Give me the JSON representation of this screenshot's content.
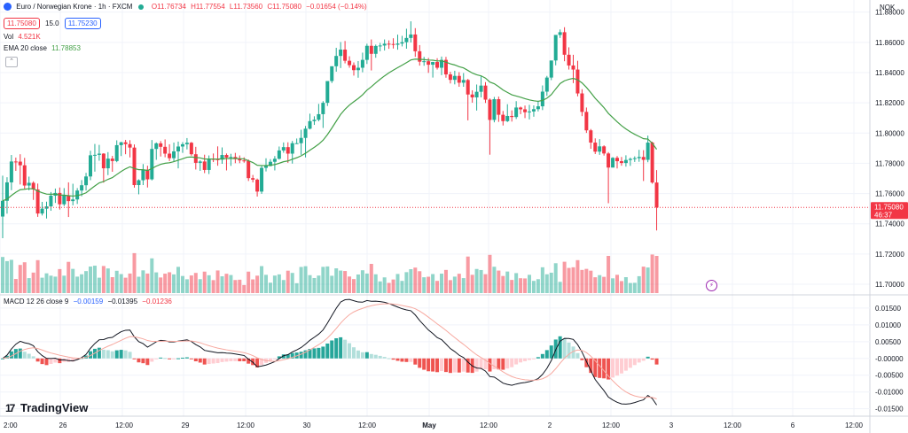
{
  "header": {
    "symbol_name": "Euro / Norwegian Krone · 1h · FXCM",
    "ohlc": {
      "o": "O11.76734",
      "h": "H11.77554",
      "l": "L11.73560",
      "c": "C11.75080",
      "chg": "−0.01654 (−0.14%)"
    },
    "sell_price": "11.75080",
    "spread": "15.0",
    "buy_price": "11.75230",
    "volume_label": "Vol",
    "volume_value": "4.521K",
    "ema_label": "EMA 20 close",
    "ema_value": "11.78853",
    "collapse_icon": "chevron-up-icon"
  },
  "macd_legend": {
    "label": "MACD 12 26 close 9",
    "v1": "−0.00159",
    "v2": "−0.01395",
    "v3": "−0.01236"
  },
  "currency": "NOK",
  "brand": "TradingView",
  "colors": {
    "up": "#22ab94",
    "down": "#f23645",
    "ema": "#43a047",
    "macd": "#131722",
    "signal": "#f7a9a0"
  },
  "chart_data": {
    "type": "candlestick",
    "x_tick_labels": [
      "2:00",
      "26",
      "12:00",
      "29",
      "12:00",
      "30",
      "12:00",
      "May",
      "12:00",
      "2",
      "12:00",
      "3",
      "12:00",
      "6",
      "12:00"
    ],
    "price_axis": {
      "ticks": [
        "11.88000",
        "11.86000",
        "11.84000",
        "11.82000",
        "11.80000",
        "11.78000",
        "11.76000",
        "11.74000",
        "11.72000",
        "11.70000"
      ],
      "ylim": [
        11.693,
        11.888
      ]
    },
    "last_price": {
      "value": 11.7508,
      "label": "11.75080",
      "countdown": "46:37"
    },
    "candles": [
      [
        11.7448,
        11.7718,
        11.7305,
        11.7552
      ],
      [
        11.7552,
        11.7708,
        11.7467,
        11.7674
      ],
      [
        11.7674,
        11.7855,
        11.7622,
        11.7812
      ],
      [
        11.7812,
        11.7838,
        11.775,
        11.7811
      ],
      [
        11.7811,
        11.786,
        11.766,
        11.7787
      ],
      [
        11.7787,
        11.7836,
        11.7631,
        11.7653
      ],
      [
        11.7653,
        11.7712,
        11.7621,
        11.7671
      ],
      [
        11.7671,
        11.7681,
        11.7558,
        11.7627
      ],
      [
        11.7627,
        11.7666,
        11.7446,
        11.7468
      ],
      [
        11.7468,
        11.7545,
        11.7455,
        11.75
      ],
      [
        11.75,
        11.7546,
        11.7435,
        11.7515
      ],
      [
        11.7515,
        11.761,
        11.7486,
        11.7586
      ],
      [
        11.7586,
        11.7633,
        11.7538,
        11.7604
      ],
      [
        11.7604,
        11.764,
        11.7494,
        11.7529
      ],
      [
        11.7529,
        11.7636,
        11.7517,
        11.7586
      ],
      [
        11.7586,
        11.7674,
        11.7445,
        11.755
      ],
      [
        11.755,
        11.7665,
        11.7522,
        11.7561
      ],
      [
        11.7561,
        11.7636,
        11.7531,
        11.762
      ],
      [
        11.762,
        11.7689,
        11.7582,
        11.7655
      ],
      [
        11.7655,
        11.7737,
        11.762,
        11.7713
      ],
      [
        11.7713,
        11.7883,
        11.7688,
        11.7853
      ],
      [
        11.7853,
        11.7928,
        11.7745,
        11.7856
      ],
      [
        11.7856,
        11.7922,
        11.7817,
        11.7864
      ],
      [
        11.7864,
        11.7867,
        11.7672,
        11.7767
      ],
      [
        11.7767,
        11.7874,
        11.7722,
        11.7831
      ],
      [
        11.7831,
        11.7849,
        11.7744,
        11.7815
      ],
      [
        11.7815,
        11.7952,
        11.7807,
        11.792
      ],
      [
        11.792,
        11.7942,
        11.7848,
        11.7939
      ],
      [
        11.7939,
        11.7955,
        11.786,
        11.7927
      ],
      [
        11.7927,
        11.7953,
        11.7839,
        11.7904
      ],
      [
        11.7904,
        11.7925,
        11.7639,
        11.7656
      ],
      [
        11.7656,
        11.7694,
        11.7595,
        11.7688
      ],
      [
        11.7688,
        11.7795,
        11.7656,
        11.7758
      ],
      [
        11.7758,
        11.7784,
        11.764,
        11.7694
      ],
      [
        11.7694,
        11.7954,
        11.7687,
        11.7895
      ],
      [
        11.7895,
        11.7938,
        11.7823,
        11.7932
      ],
      [
        11.7932,
        11.7947,
        11.7845,
        11.7909
      ],
      [
        11.7909,
        11.7958,
        11.784,
        11.7864
      ],
      [
        11.7864,
        11.7926,
        11.7815,
        11.7834
      ],
      [
        11.7834,
        11.7937,
        11.7811,
        11.7879
      ],
      [
        11.7879,
        11.7944,
        11.7767,
        11.7911
      ],
      [
        11.7911,
        11.794,
        11.7869,
        11.7926
      ],
      [
        11.7926,
        11.7967,
        11.7892,
        11.7936
      ],
      [
        11.7936,
        11.7941,
        11.785,
        11.786
      ],
      [
        11.786,
        11.7909,
        11.7759,
        11.7803
      ],
      [
        11.7803,
        11.7821,
        11.775,
        11.7812
      ],
      [
        11.7812,
        11.7857,
        11.7735,
        11.7756
      ],
      [
        11.7756,
        11.7852,
        11.7729,
        11.7829
      ],
      [
        11.7829,
        11.7865,
        11.7808,
        11.7827
      ],
      [
        11.7827,
        11.7912,
        11.7784,
        11.7824
      ],
      [
        11.7824,
        11.7905,
        11.7797,
        11.7855
      ],
      [
        11.7855,
        11.7865,
        11.7753,
        11.7838
      ],
      [
        11.7838,
        11.7863,
        11.7783,
        11.7842
      ],
      [
        11.7842,
        11.7869,
        11.7801,
        11.7828
      ],
      [
        11.7828,
        11.7852,
        11.7801,
        11.7819
      ],
      [
        11.7819,
        11.784,
        11.7804,
        11.7817
      ],
      [
        11.7817,
        11.7825,
        11.7683,
        11.7702
      ],
      [
        11.7702,
        11.7723,
        11.7674,
        11.7692
      ],
      [
        11.7692,
        11.7699,
        11.758,
        11.7613
      ],
      [
        11.7613,
        11.7787,
        11.7598,
        11.777
      ],
      [
        11.777,
        11.7833,
        11.7746,
        11.7782
      ],
      [
        11.7782,
        11.7828,
        11.778,
        11.781
      ],
      [
        11.781,
        11.7848,
        11.7753,
        11.783
      ],
      [
        11.783,
        11.7911,
        11.7825,
        11.7885
      ],
      [
        11.7885,
        11.7938,
        11.787,
        11.7907
      ],
      [
        11.7907,
        11.7939,
        11.7803,
        11.7864
      ],
      [
        11.7864,
        11.7948,
        11.7798,
        11.7933
      ],
      [
        11.7933,
        11.7964,
        11.7931,
        11.7933
      ],
      [
        11.7933,
        11.8022,
        11.7856,
        11.7968
      ],
      [
        11.7968,
        11.8047,
        11.7839,
        11.8029
      ],
      [
        11.8029,
        11.8128,
        11.8024,
        11.8079
      ],
      [
        11.8079,
        11.8111,
        11.8054,
        11.8088
      ],
      [
        11.8088,
        11.8193,
        11.8078,
        11.8125
      ],
      [
        11.8125,
        11.8211,
        11.8034,
        11.82
      ],
      [
        11.82,
        11.834,
        11.8179,
        11.8344
      ],
      [
        11.8344,
        11.8439,
        11.8331,
        11.8442
      ],
      [
        11.8442,
        11.8564,
        11.8406,
        11.851
      ],
      [
        11.851,
        11.8602,
        11.843,
        11.8552
      ],
      [
        11.8552,
        11.8609,
        11.8461,
        11.8478
      ],
      [
        11.8478,
        11.8508,
        11.8432,
        11.8449
      ],
      [
        11.8449,
        11.8467,
        11.838,
        11.8416
      ],
      [
        11.8416,
        11.8476,
        11.8366,
        11.8432
      ],
      [
        11.8432,
        11.8532,
        11.8402,
        11.8484
      ],
      [
        11.8484,
        11.8591,
        11.8457,
        11.8577
      ],
      [
        11.8577,
        11.8619,
        11.8414,
        11.8524
      ],
      [
        11.8524,
        11.8585,
        11.8498,
        11.8576
      ],
      [
        11.8576,
        11.8596,
        11.8541,
        11.8579
      ],
      [
        11.8579,
        11.8619,
        11.8546,
        11.8591
      ],
      [
        11.8591,
        11.8613,
        11.8557,
        11.8589
      ],
      [
        11.8589,
        11.8627,
        11.8559,
        11.8584
      ],
      [
        11.8584,
        11.8651,
        11.8551,
        11.8592
      ],
      [
        11.8592,
        11.8643,
        11.8573,
        11.8601
      ],
      [
        11.8601,
        11.869,
        11.8558,
        11.8629
      ],
      [
        11.8629,
        11.8739,
        11.8599,
        11.8652
      ],
      [
        11.8652,
        11.8694,
        11.8504,
        11.8541
      ],
      [
        11.8541,
        11.8582,
        11.8446,
        11.8472
      ],
      [
        11.8472,
        11.8504,
        11.8445,
        11.8475
      ],
      [
        11.8475,
        11.8497,
        11.8398,
        11.8452
      ],
      [
        11.8452,
        11.8471,
        11.8367,
        11.847
      ],
      [
        11.847,
        11.8495,
        11.842,
        11.8432
      ],
      [
        11.8432,
        11.8506,
        11.8383,
        11.8484
      ],
      [
        11.8484,
        11.8504,
        11.8366,
        11.8388
      ],
      [
        11.8388,
        11.8405,
        11.8328,
        11.8352
      ],
      [
        11.8352,
        11.8412,
        11.8322,
        11.8378
      ],
      [
        11.8378,
        11.8403,
        11.8306,
        11.8333
      ],
      [
        11.8333,
        11.8397,
        11.8306,
        11.8351
      ],
      [
        11.8351,
        11.8358,
        11.8084,
        11.8255
      ],
      [
        11.8255,
        11.8283,
        11.8201,
        11.8236
      ],
      [
        11.8236,
        11.8321,
        11.8149,
        11.8273
      ],
      [
        11.8273,
        11.8378,
        11.8236,
        11.8314
      ],
      [
        11.8314,
        11.8337,
        11.8199,
        11.8221
      ],
      [
        11.8221,
        11.8229,
        11.7857,
        11.8087
      ],
      [
        11.8087,
        11.8239,
        11.8071,
        11.8224
      ],
      [
        11.8224,
        11.8241,
        11.8074,
        11.8121
      ],
      [
        11.8121,
        11.8146,
        11.805,
        11.8079
      ],
      [
        11.8079,
        11.8191,
        11.8073,
        11.8113
      ],
      [
        11.8113,
        11.815,
        11.8076,
        11.8106
      ],
      [
        11.8106,
        11.8211,
        11.8093,
        11.8169
      ],
      [
        11.8169,
        11.8175,
        11.8125,
        11.8157
      ],
      [
        11.8157,
        11.8182,
        11.8099,
        11.8138
      ],
      [
        11.8138,
        11.8187,
        11.809,
        11.8143
      ],
      [
        11.8143,
        11.8183,
        11.8108,
        11.8158
      ],
      [
        11.8158,
        11.8214,
        11.8143,
        11.8177
      ],
      [
        11.8177,
        11.8315,
        11.8152,
        11.8274
      ],
      [
        11.8274,
        11.8378,
        11.8246,
        11.8367
      ],
      [
        11.8367,
        11.8477,
        11.835,
        11.848
      ],
      [
        11.848,
        11.8644,
        11.8448,
        11.8649
      ],
      [
        11.8649,
        11.8685,
        11.8629,
        11.8667
      ],
      [
        11.8667,
        11.87,
        11.8475,
        11.8518
      ],
      [
        11.8518,
        11.8567,
        11.842,
        11.8447
      ],
      [
        11.8447,
        11.8518,
        11.833,
        11.842
      ],
      [
        11.842,
        11.8478,
        11.8243,
        11.8262
      ],
      [
        11.8262,
        11.829,
        11.8112,
        11.814
      ],
      [
        11.814,
        11.8169,
        11.8001,
        11.8018
      ],
      [
        11.8018,
        11.8027,
        11.7896,
        11.7937
      ],
      [
        11.7937,
        11.7965,
        11.7861,
        11.7877
      ],
      [
        11.7877,
        11.796,
        11.7856,
        11.7912
      ],
      [
        11.7912,
        11.7919,
        11.7851,
        11.7865
      ],
      [
        11.7865,
        11.7874,
        11.7536,
        11.7772
      ],
      [
        11.7772,
        11.7841,
        11.7772,
        11.7836
      ],
      [
        11.7836,
        11.7848,
        11.7766,
        11.7814
      ],
      [
        11.7814,
        11.7842,
        11.7784,
        11.7802
      ],
      [
        11.7802,
        11.7853,
        11.7778,
        11.7822
      ],
      [
        11.7822,
        11.7838,
        11.7783,
        11.7829
      ],
      [
        11.7829,
        11.7846,
        11.7809,
        11.7834
      ],
      [
        11.7834,
        11.7889,
        11.781,
        11.7842
      ],
      [
        11.7842,
        11.7887,
        11.7683,
        11.7823
      ],
      [
        11.7823,
        11.7983,
        11.7807,
        11.7937
      ],
      [
        11.7937,
        11.7943,
        11.7665,
        11.7673
      ],
      [
        11.7673,
        11.7755,
        11.7356,
        11.7508
      ]
    ],
    "ema_period": 20,
    "macd": {
      "params": "12 26 close 9",
      "axis_ticks": [
        "0.01500",
        "0.01000",
        "0.00500",
        "-0.00000",
        "-0.00500",
        "-0.01000",
        "-0.01500"
      ],
      "ylim": [
        -0.0172,
        0.0184
      ]
    }
  }
}
